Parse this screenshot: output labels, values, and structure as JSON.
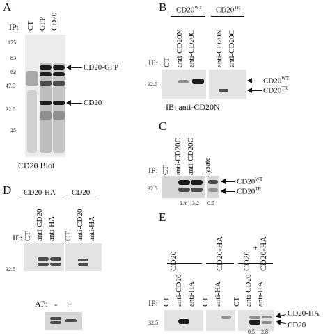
{
  "panels": {
    "A": {
      "letter": "A",
      "ip_label": "IP:",
      "lanes": [
        "CT",
        "GFP",
        "CD20"
      ],
      "markers": [
        "175",
        "83",
        "62",
        "47.5",
        "32.5",
        "25"
      ],
      "arrow_labels": [
        "CD20-GFP",
        "CD20"
      ],
      "caption": "CD20 Blot"
    },
    "B": {
      "letter": "B",
      "group1": {
        "name": "CD20",
        "sup": "WT"
      },
      "group2": {
        "name": "CD20",
        "sup": "TR"
      },
      "ip_label": "IP:",
      "lanes": [
        "CT",
        "anti-CD20N",
        "anti-CD20C",
        "anti-CD20N",
        "anti-CD20C"
      ],
      "marker": "32.5",
      "arrow_labels": [
        {
          "name": "CD20",
          "sup": "WT"
        },
        {
          "name": "CD20",
          "sup": "TR"
        }
      ],
      "caption": "IB:  anti-CD20N"
    },
    "C": {
      "letter": "C",
      "ip_label": "IP:",
      "lanes": [
        "CT",
        "anti-CD20C",
        "anti-CD20C",
        "lysate"
      ],
      "marker": "32.5",
      "arrow_labels": [
        {
          "name": "CD20",
          "sup": "WT"
        },
        {
          "name": "CD20",
          "sup": "TR"
        }
      ],
      "ratios": [
        "3.4",
        "3.2",
        "0.5"
      ]
    },
    "D": {
      "letter": "D",
      "group1": "CD20-HA",
      "group2": "CD20",
      "ip_label": "IP:",
      "lanes": [
        "CT",
        "anti-CD20",
        "anti-HA",
        "CT",
        "anti-CD20",
        "anti-HA"
      ],
      "marker": "32.5",
      "ap_label": "AP:",
      "ap_minus": "-",
      "ap_plus": "+"
    },
    "E": {
      "letter": "E",
      "group1": "CD20",
      "group2": "CD20-HA",
      "group3_top": "CD20",
      "group3_plus": "+",
      "group3_bottom": "CD20-HA",
      "ip_label": "IP:",
      "lanes": [
        "CT",
        "anti-CD20",
        "anti-HA",
        "CT",
        "anti-HA",
        "CT",
        "anti-CD20",
        "anti-HA"
      ],
      "marker": "32.5",
      "arrow_labels": [
        "CD20-HA",
        "CD20"
      ],
      "ratios": [
        "0.5",
        "2.8"
      ]
    }
  }
}
